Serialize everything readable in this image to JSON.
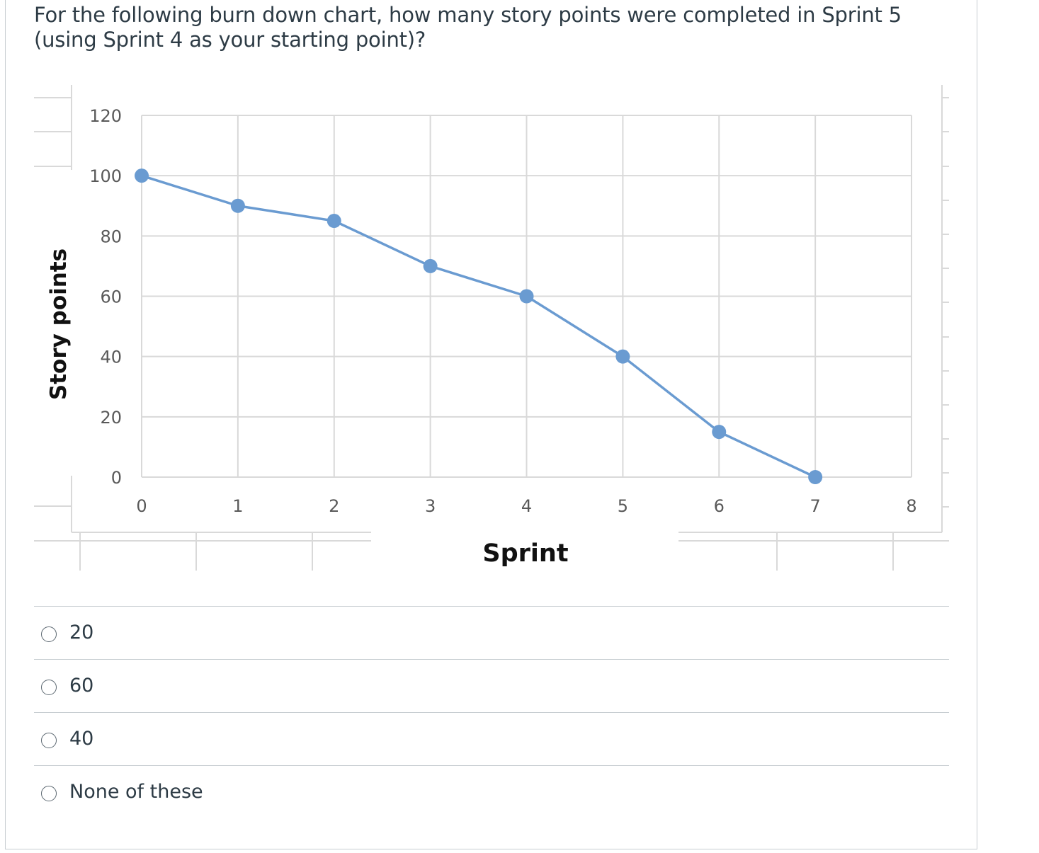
{
  "question": {
    "text": "For the following burn down chart, how many story points were completed in Sprint 5 (using Sprint 4 as your starting point)?"
  },
  "chart_data": {
    "type": "line",
    "x": [
      0,
      1,
      2,
      3,
      4,
      5,
      6,
      7
    ],
    "values": [
      100,
      90,
      85,
      70,
      60,
      40,
      15,
      0
    ],
    "xlabel": "Sprint",
    "ylabel": "Story points",
    "xlim": [
      0,
      8
    ],
    "ylim": [
      0,
      120
    ],
    "xticks": [
      "0",
      "1",
      "2",
      "3",
      "4",
      "5",
      "6",
      "7",
      "8"
    ],
    "yticks": [
      "0",
      "20",
      "40",
      "60",
      "80",
      "100",
      "120"
    ],
    "grid": true,
    "color": "#6a9bd1"
  },
  "answers": [
    {
      "label": "20"
    },
    {
      "label": "60"
    },
    {
      "label": "40"
    },
    {
      "label": "None of these"
    }
  ]
}
